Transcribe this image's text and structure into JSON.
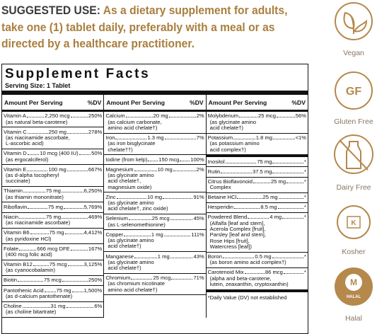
{
  "suggested_use": {
    "label": "SUGGESTED USE:",
    "lines": [
      "As a dietary supplement for adults,",
      "take one (1) tablet daily, preferably with a meal or as",
      "directed by a healthcare practitioner."
    ]
  },
  "facts": {
    "title": "Supplement Facts",
    "serving": "Serving Size: 1 Tablet",
    "columns": [
      {
        "header": {
          "amount": "Amount Per Serving",
          "dv": "%DV"
        },
        "groups": [
          [
            {
              "name": "Vitamin A",
              "amount": "2,250 mcg",
              "dv": "250%",
              "notes": [
                "(as natural beta-carotene)"
              ]
            },
            {
              "name": "Vitamin C",
              "amount": "250 mg",
              "dv": "278%",
              "notes": [
                "(as niacinamide ascorbate,",
                "L-ascorbic acid)"
              ]
            },
            {
              "name": "Vitamin D",
              "amount": "10 mcg (400 IU)",
              "dv": "50%",
              "notes": [
                "(as ergocalciferol)"
              ]
            },
            {
              "name": "Vitamin E",
              "amount": "100 mg",
              "dv": "667%",
              "notes": [
                "(as d-alpha tocopheryl",
                "succinate)"
              ]
            },
            {
              "name": "Thiamin",
              "amount": "75 mg",
              "dv": "6,250%",
              "notes": [
                "(as thiamin mononitrate)"
              ]
            },
            {
              "name": "Riboflavin",
              "amount": "75 mg",
              "dv": "5,769%"
            },
            {
              "name": "Niacin",
              "amount": "75 mg",
              "dv": "469%",
              "notes": [
                "(as niacinamide ascorbate)"
              ]
            },
            {
              "name": "Vitamin B6",
              "amount": "75 mg",
              "dv": "4,412%",
              "notes": [
                "(as pyridoxine HCl)"
              ]
            },
            {
              "name": "Folate",
              "amount": "666 mcg DFE",
              "dv": "167%",
              "notes": [
                "(400 mcg folic acid)"
              ]
            },
            {
              "name": "Vitamin B12",
              "amount": "75 mcg",
              "dv": "3,125%",
              "notes": [
                "(as cyanocobalamin)"
              ]
            },
            {
              "name": "Biotin",
              "amount": "75 mcg",
              "dv": "250%"
            },
            {
              "name": "Pantothenic Acid",
              "amount": "75 mg",
              "dv": "1,500%",
              "notes": [
                "(as d-calcium pantothenate)"
              ]
            },
            {
              "name": "Choline",
              "amount": "31 mg",
              "dv": "6%",
              "notes": [
                "(as choline bitartrate)"
              ]
            }
          ]
        ]
      },
      {
        "header": {
          "amount": "Amount Per Serving",
          "dv": "%DV"
        },
        "groups": [
          [
            {
              "name": "Calcium",
              "amount": "20 mg",
              "dv": "2%",
              "notes": [
                "(as calcium carbonate,",
                "amino acid chelate†)"
              ]
            },
            {
              "name": "Iron",
              "amount": "1.3 mg",
              "dv": "7%",
              "notes": [
                "(as iron bisglycinate",
                "chelate††)"
              ]
            },
            {
              "name": "Iodine (from kelp)",
              "amount": "150 mcg",
              "dv": "100%"
            },
            {
              "name": "Magnesium",
              "amount": "10 mg",
              "dv": "2%",
              "notes": [
                "(as glycinate amino",
                "acid chelate†,",
                "magnesium oxide)"
              ]
            },
            {
              "name": "Zinc",
              "amount": "10 mg",
              "dv": "91%",
              "notes": [
                "(as glycinate amino",
                "acid chelate†, zinc oxide)"
              ]
            },
            {
              "name": "Selenium",
              "amount": "25 mcg",
              "dv": "45%",
              "notes": [
                "(as L-selenomethionine)"
              ]
            },
            {
              "name": "Copper",
              "amount": "1 mg",
              "dv": "111%",
              "notes": [
                "(as glycinate amino",
                "acid chelate†)"
              ]
            },
            {
              "name": "Manganese",
              "amount": "1 mg",
              "dv": "43%",
              "notes": [
                "(as glycinate amino",
                "acid chelate†)"
              ]
            },
            {
              "name": "Chromium",
              "amount": "25 mcg",
              "dv": "71%",
              "notes": [
                "(as chromium nicotinate",
                "amino acid chelate†)"
              ]
            }
          ]
        ]
      },
      {
        "header": {
          "amount": "Amount Per Serving",
          "dv": "%DV"
        },
        "groups": [
          [
            {
              "name": "Molybdenum",
              "amount": "25 mcg",
              "dv": "56%",
              "notes": [
                "(as glycinate amino",
                "acid chelate†)"
              ]
            },
            {
              "name": "Potassium",
              "amount": "1.8 mg",
              "dv": "<1%",
              "notes": [
                "(as potassium amino",
                "acid complex†)"
              ]
            }
          ],
          [
            {
              "name": "Inositol",
              "amount": "75 mg",
              "dv": "*"
            },
            {
              "name": "Rutin",
              "amount": "37.5 mg",
              "dv": "*"
            },
            {
              "name": "Citrus Bioflavonoid",
              "amount": "25 mg",
              "dv": "*",
              "notes": [
                "Complex"
              ]
            },
            {
              "name": "Betaine HCl",
              "amount": "25 mg",
              "dv": "*"
            },
            {
              "name": "Hesperidin",
              "amount": "8.5 mg",
              "dv": "*"
            },
            {
              "name": "Powdered Blend",
              "amount": "4 mg",
              "dv": "*",
              "notes": [
                "(Alfalfa [leaf and stem],",
                "Acerola Complex [fruit],",
                "Parsley [leaf and stem],",
                "Rose Hips [fruit],",
                "Watercress [leaf])"
              ]
            },
            {
              "name": "Boron",
              "amount": "0.5 mg",
              "dv": "*",
              "notes": [
                "(as boron amino acid complex†)"
              ]
            },
            {
              "name": "Carotenoid Mix",
              "amount": "86 mcg",
              "dv": "*",
              "notes": [
                "(alpha and beta-carotene,",
                "lutein, zeaxanthin, cryptoxanthin)"
              ]
            }
          ]
        ],
        "footnote": "*Daily Value (DV) not established"
      }
    ]
  },
  "badges": [
    {
      "label": "Vegan"
    },
    {
      "label": "Gluten Free",
      "mark": "GF"
    },
    {
      "label": "Dairy Free"
    },
    {
      "label": "Kosher",
      "mark": "K"
    },
    {
      "label": "Halal",
      "mark": "M",
      "seal": "HALAL"
    }
  ]
}
